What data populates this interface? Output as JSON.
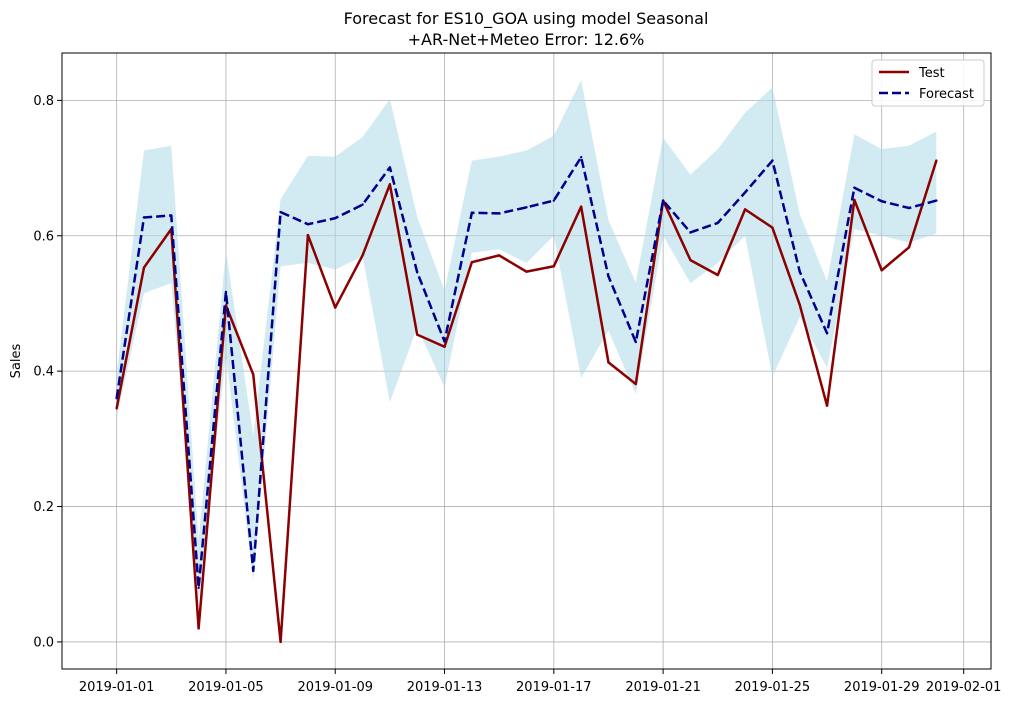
{
  "chart_data": {
    "type": "line",
    "title_line1": "Forecast for ES10_GOA using model Seasonal",
    "title_line2": "+AR-Net+Meteo Error: 12.6%",
    "xlabel": "",
    "ylabel": "Sales",
    "x": [
      "2019-01-01",
      "2019-01-02",
      "2019-01-03",
      "2019-01-04",
      "2019-01-05",
      "2019-01-06",
      "2019-01-07",
      "2019-01-08",
      "2019-01-09",
      "2019-01-10",
      "2019-01-11",
      "2019-01-12",
      "2019-01-13",
      "2019-01-14",
      "2019-01-15",
      "2019-01-16",
      "2019-01-17",
      "2019-01-18",
      "2019-01-19",
      "2019-01-20",
      "2019-01-21",
      "2019-01-22",
      "2019-01-23",
      "2019-01-24",
      "2019-01-25",
      "2019-01-26",
      "2019-01-27",
      "2019-01-28",
      "2019-01-29",
      "2019-01-30",
      "2019-01-31"
    ],
    "xticks": [
      "2019-01-01",
      "2019-01-05",
      "2019-01-09",
      "2019-01-13",
      "2019-01-17",
      "2019-01-21",
      "2019-01-25",
      "2019-01-29",
      "2019-02-01"
    ],
    "yticks": [
      "0.0",
      "0.2",
      "0.4",
      "0.6",
      "0.8"
    ],
    "xlim": [
      "2018-12-30",
      "2019-02-02"
    ],
    "ylim": [
      -0.04,
      0.87
    ],
    "grid": true,
    "legend_position": "top-right",
    "series": [
      {
        "name": "Test",
        "color": "#8b0000",
        "style": "solid",
        "values": [
          0.345,
          0.553,
          0.61,
          0.02,
          0.497,
          0.395,
          0.0,
          0.601,
          0.494,
          0.571,
          0.676,
          0.454,
          0.436,
          0.561,
          0.571,
          0.547,
          0.555,
          0.643,
          0.413,
          0.381,
          0.652,
          0.564,
          0.542,
          0.639,
          0.612,
          0.498,
          0.349,
          0.653,
          0.549,
          0.583,
          0.711
        ]
      },
      {
        "name": "Forecast",
        "color": "#00008b",
        "style": "dashed",
        "values": [
          0.36,
          0.627,
          0.63,
          0.08,
          0.517,
          0.105,
          0.635,
          0.617,
          0.626,
          0.646,
          0.701,
          0.546,
          0.444,
          0.634,
          0.633,
          0.642,
          0.652,
          0.716,
          0.54,
          0.443,
          0.652,
          0.605,
          0.619,
          0.664,
          0.711,
          0.547,
          0.456,
          0.671,
          0.651,
          0.641,
          0.652
        ]
      }
    ],
    "band": {
      "color": "#add8e6",
      "upper": [
        0.395,
        0.726,
        0.733,
        0.15,
        0.578,
        0.305,
        0.654,
        0.718,
        0.717,
        0.746,
        0.802,
        0.628,
        0.519,
        0.711,
        0.717,
        0.726,
        0.748,
        0.83,
        0.623,
        0.531,
        0.745,
        0.69,
        0.728,
        0.782,
        0.819,
        0.632,
        0.533,
        0.75,
        0.728,
        0.733,
        0.754
      ],
      "lower": [
        0.33,
        0.515,
        0.53,
        0.06,
        0.425,
        0.09,
        0.555,
        0.56,
        0.55,
        0.57,
        0.354,
        0.465,
        0.376,
        0.575,
        0.58,
        0.56,
        0.6,
        0.39,
        0.46,
        0.366,
        0.6,
        0.53,
        0.56,
        0.6,
        0.392,
        0.48,
        0.405,
        0.61,
        0.6,
        0.59,
        0.603
      ]
    }
  }
}
